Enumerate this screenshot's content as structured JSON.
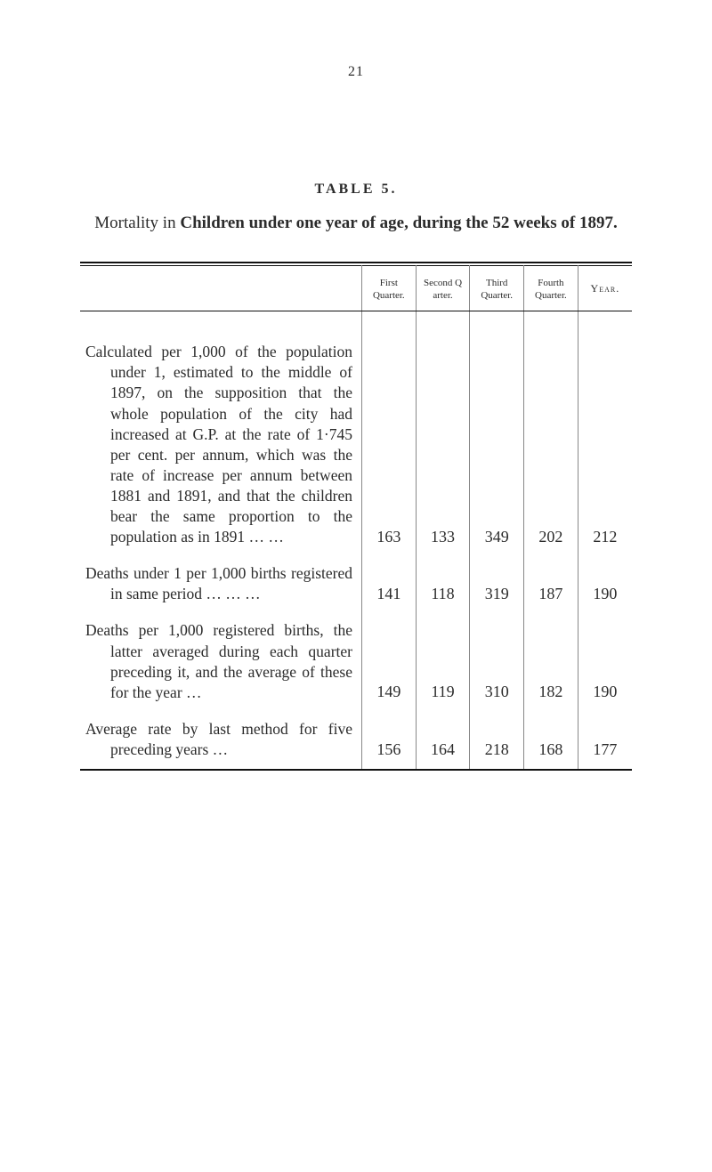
{
  "page_number": "21",
  "table_label": "TABLE 5.",
  "caption_line1_plain_prefix": "Mortality in ",
  "caption_line1_bold": "Children under one year of age, during the 52 weeks of 1897.",
  "headers": {
    "blank": "",
    "q1": "First Quarter.",
    "q2": "Second Q  arter.",
    "q3": "Third Quarter.",
    "q4": "Fourth Quarter.",
    "year": "Year."
  },
  "rows": [
    {
      "desc": "Calculated per 1,000 of the population under 1, es­timated to the middle of 1897, on the supposition that the whole population of the city had increased at G.P. at the rate of 1·745 per cent. per annum, which was the rate of increase per annum between 1881 and 1891, and that the children bear the same proportion to the popula­tion as in 1891 …   …",
      "q1": "163",
      "q2": "133",
      "q3": "349",
      "q4": "202",
      "year": "212"
    },
    {
      "desc": "Deaths under 1 per 1,000 births registered in same period   …   …   …",
      "q1": "141",
      "q2": "118",
      "q3": "319",
      "q4": "187",
      "year": "190"
    },
    {
      "desc": "Deaths per 1,000 registered births, the latter averaged during each quarter pre­ceding it, and the average of these for the year   …",
      "q1": "149",
      "q2": "119",
      "q3": "310",
      "q4": "182",
      "year": "190"
    },
    {
      "desc": "Average rate by last method for five preceding years …",
      "q1": "156",
      "q2": "164",
      "q3": "218",
      "q4": "168",
      "year": "177"
    }
  ]
}
